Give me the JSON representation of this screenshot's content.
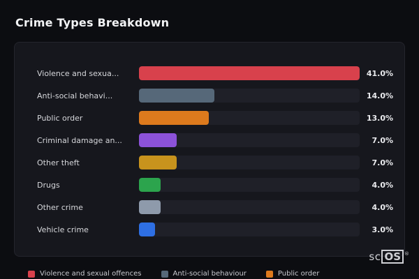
{
  "title": "Crime Types Breakdown",
  "chart_data": {
    "type": "bar",
    "orientation": "horizontal",
    "categories": [
      "Violence and sexua...",
      "Anti-social behavi...",
      "Public order",
      "Criminal damage an...",
      "Other theft",
      "Drugs",
      "Other crime",
      "Vehicle crime"
    ],
    "values": [
      41.0,
      14.0,
      13.0,
      7.0,
      7.0,
      4.0,
      4.0,
      3.0
    ],
    "value_labels": [
      "41.0%",
      "14.0%",
      "13.0%",
      "7.0%",
      "7.0%",
      "4.0%",
      "4.0%",
      "3.0%"
    ],
    "bar_colors": [
      "#d8414c",
      "#566879",
      "#dd7a1d",
      "#8c52d9",
      "#c8931d",
      "#2ca44d",
      "#8e9aab",
      "#2e6fe3"
    ],
    "max_value": 41.0,
    "track_color": "#1f2028",
    "legend_position": "bottom",
    "legend": [
      {
        "label": "Violence and sexual offences",
        "color": "#d8414c"
      },
      {
        "label": "Anti-social behaviour",
        "color": "#566879"
      },
      {
        "label": "Public order",
        "color": "#dd7a1d"
      }
    ]
  },
  "watermark": {
    "prefix": "sc",
    "boxed": "OS",
    "registered": "®"
  }
}
